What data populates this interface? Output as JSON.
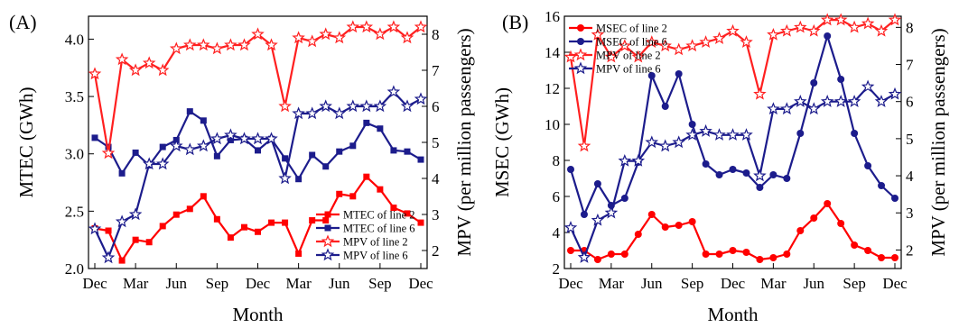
{
  "chart_data": [
    {
      "panel_label": "(A)",
      "type": "line",
      "xlabel": "Month",
      "ylabel_left": "MTEC (GWh)",
      "ylabel_right": "MPV (per million passengers)",
      "ylim_left": [
        2.0,
        4.2
      ],
      "ylim_right": [
        1.5,
        8.5
      ],
      "yticks_left": [
        "2.0",
        "2.5",
        "3.0",
        "3.5",
        "4.0"
      ],
      "yticks_right": [
        "2",
        "3",
        "4",
        "5",
        "6",
        "7",
        "8"
      ],
      "xticks": [
        "Dec",
        "Mar",
        "Jun",
        "Sep",
        "Dec",
        "Mar",
        "Jun",
        "Sep",
        "Dec"
      ],
      "grid": false,
      "legend_position": "bottom-right",
      "series": [
        {
          "name": "MTEC of line 2",
          "axis": "left",
          "color": "#ff0000",
          "marker": "square",
          "values": [
            2.35,
            2.33,
            2.07,
            2.25,
            2.23,
            2.37,
            2.47,
            2.52,
            2.63,
            2.43,
            2.27,
            2.36,
            2.32,
            2.4,
            2.4,
            2.13,
            2.42,
            2.42,
            2.65,
            2.63,
            2.8,
            2.69,
            2.53,
            2.48,
            2.4
          ]
        },
        {
          "name": "MTEC of line 6",
          "axis": "left",
          "color": "#1c1c8c",
          "marker": "square",
          "values": [
            3.14,
            3.06,
            2.83,
            3.01,
            2.9,
            3.06,
            3.12,
            3.37,
            3.29,
            2.98,
            3.12,
            3.13,
            3.03,
            3.13,
            2.96,
            2.78,
            2.99,
            2.89,
            3.02,
            3.07,
            3.27,
            3.22,
            3.03,
            3.02,
            2.95
          ]
        },
        {
          "name": "MPV of line 2",
          "axis": "right",
          "color": "#ff2020",
          "marker": "star",
          "values": [
            6.9,
            4.7,
            7.3,
            7.0,
            7.2,
            7.0,
            7.6,
            7.7,
            7.7,
            7.6,
            7.7,
            7.7,
            8.0,
            7.7,
            6.0,
            7.9,
            7.8,
            8.0,
            7.9,
            8.2,
            8.2,
            8.0,
            8.2,
            7.9,
            8.2
          ]
        },
        {
          "name": "MPV of line 6",
          "axis": "right",
          "color": "#1c1c8c",
          "marker": "star",
          "values": [
            2.6,
            1.8,
            2.8,
            3.0,
            4.4,
            4.4,
            4.9,
            4.8,
            4.9,
            5.1,
            5.2,
            5.1,
            5.1,
            5.1,
            4.0,
            5.8,
            5.8,
            6.0,
            5.8,
            6.0,
            6.0,
            6.0,
            6.4,
            6.0,
            6.2
          ]
        }
      ]
    },
    {
      "panel_label": "(B)",
      "type": "line",
      "xlabel": "Month",
      "ylabel_left": "MSEC (GWh)",
      "ylabel_right": "MPV (per million passengers)",
      "ylim_left": [
        2,
        16
      ],
      "ylim_right": [
        1.5,
        8.3
      ],
      "yticks_left": [
        "2",
        "4",
        "6",
        "8",
        "10",
        "12",
        "14",
        "16"
      ],
      "yticks_right": [
        "2",
        "3",
        "4",
        "5",
        "6",
        "7",
        "8"
      ],
      "xticks": [
        "Dec",
        "Mar",
        "Jun",
        "Sep",
        "Dec",
        "Mar",
        "Jun",
        "Sep",
        "Dec"
      ],
      "grid": false,
      "legend_position": "top-left",
      "series": [
        {
          "name": "MSEC of line 2",
          "axis": "left",
          "color": "#ff0000",
          "marker": "circle",
          "values": [
            3.0,
            3.0,
            2.5,
            2.8,
            2.8,
            3.9,
            5.0,
            4.3,
            4.4,
            4.6,
            2.8,
            2.8,
            3.0,
            2.9,
            2.5,
            2.6,
            2.8,
            4.1,
            4.8,
            5.6,
            4.5,
            3.3,
            3.0,
            2.6,
            2.6
          ]
        },
        {
          "name": "MSEC of line 6",
          "axis": "left",
          "color": "#1c1c8c",
          "marker": "circle",
          "values": [
            7.5,
            5.0,
            6.7,
            5.5,
            5.9,
            7.9,
            12.7,
            11.0,
            12.8,
            10.0,
            7.8,
            7.2,
            7.5,
            7.3,
            6.5,
            7.2,
            7.0,
            9.5,
            12.3,
            14.9,
            12.5,
            9.5,
            7.7,
            6.6,
            5.9
          ]
        },
        {
          "name": "MPV of line 2",
          "axis": "right",
          "color": "#ff2020",
          "marker": "star",
          "values": [
            7.2,
            4.8,
            7.8,
            7.2,
            7.5,
            7.2,
            7.6,
            7.5,
            7.4,
            7.5,
            7.6,
            7.7,
            7.9,
            7.6,
            6.2,
            7.8,
            7.9,
            8.0,
            7.9,
            8.2,
            8.2,
            8.0,
            8.1,
            7.9,
            8.2
          ]
        },
        {
          "name": "MPV of line 6",
          "axis": "right",
          "color": "#1c1c8c",
          "marker": "star",
          "values": [
            2.6,
            1.8,
            2.8,
            3.0,
            4.4,
            4.4,
            4.9,
            4.8,
            4.9,
            5.1,
            5.2,
            5.1,
            5.1,
            5.1,
            4.0,
            5.8,
            5.8,
            6.0,
            5.8,
            6.0,
            6.0,
            6.0,
            6.4,
            6.0,
            6.2
          ]
        }
      ]
    }
  ]
}
